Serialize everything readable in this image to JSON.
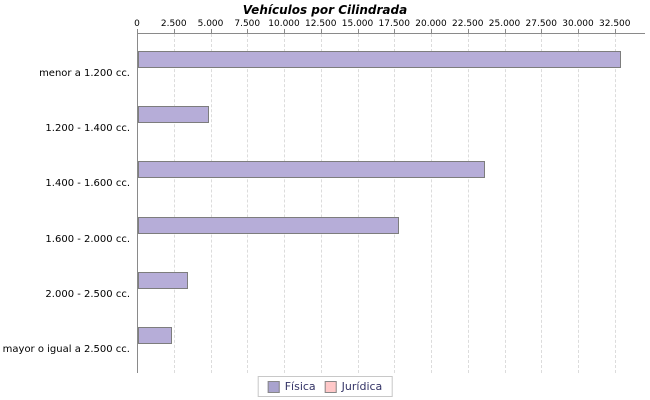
{
  "title": "Vehículos por Cilindrada",
  "chart_data": {
    "type": "bar",
    "orientation": "horizontal",
    "title": "Vehículos por Cilindrada",
    "categories": [
      "menor a 1.200 cc.",
      "1.200 - 1.400 cc.",
      "1.400 - 1.600 cc.",
      "1.600 - 2.000 cc.",
      "2.000 - 2.500 cc.",
      "mayor o igual a 2.500 cc."
    ],
    "series": [
      {
        "name": "Física",
        "color": "#b6add8",
        "values": [
          32700,
          4700,
          23500,
          17650,
          3250,
          2150
        ]
      },
      {
        "name": "Jurídica",
        "color": "#ffc8c8",
        "values": [
          0,
          0,
          0,
          0,
          0,
          0
        ]
      }
    ],
    "x_ticks": [
      "0",
      "2.500",
      "5.000",
      "7.500",
      "10.000",
      "12.500",
      "15.000",
      "17.500",
      "20.000",
      "22.500",
      "25.000",
      "27.500",
      "30.000",
      "32.500"
    ],
    "x_tick_values": [
      0,
      2500,
      5000,
      7500,
      10000,
      12500,
      15000,
      17500,
      20000,
      22500,
      25000,
      27500,
      30000,
      32500
    ],
    "xlim": [
      0,
      34500
    ],
    "xlabel": "",
    "ylabel": "",
    "grid": "vertical-dashed",
    "legend_position": "bottom-center",
    "axis_position": "top"
  },
  "colors": {
    "bar_fill": "#b6add8",
    "bar_border": "#7d7d7d",
    "legend_fisica_swatch": "#a9a3ce",
    "legend_juridica_swatch": "#ffc8c8",
    "legend_text": "#333366",
    "axis_line": "#8a8a8a",
    "gridline": "#dcdcdc",
    "title_text": "#000000"
  }
}
